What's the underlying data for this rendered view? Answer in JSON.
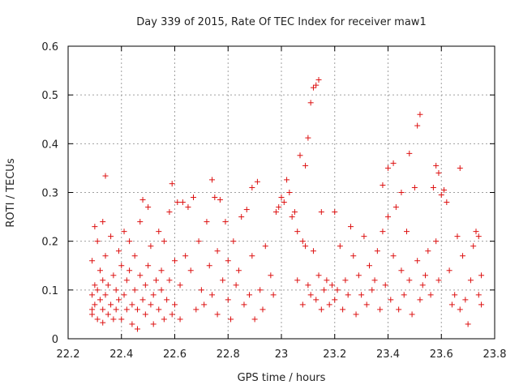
{
  "chart_data": {
    "type": "scatter",
    "title": "Day 339 of 2015, Rate Of TEC Index for receiver maw1",
    "xlabel": "GPS time / hours",
    "ylabel": "ROTI / TECUs",
    "xlim": [
      22.2,
      23.8
    ],
    "ylim": [
      0,
      0.6
    ],
    "x_ticks": [
      "22.2",
      "22.4",
      "22.6",
      "22.8",
      "23",
      "23.2",
      "23.4",
      "23.6",
      "23.8"
    ],
    "y_ticks": [
      "0",
      "0.1",
      "0.2",
      "0.3",
      "0.4",
      "0.5",
      "0.6"
    ],
    "grid": true,
    "marker": "+",
    "series": [
      {
        "color": "#dd1111",
        "points": [
          [
            22.29,
            0.09
          ],
          [
            22.29,
            0.06
          ],
          [
            22.29,
            0.05
          ],
          [
            22.29,
            0.16
          ],
          [
            22.3,
            0.23
          ],
          [
            22.3,
            0.11
          ],
          [
            22.3,
            0.07
          ],
          [
            22.31,
            0.04
          ],
          [
            22.31,
            0.2
          ],
          [
            22.31,
            0.1
          ],
          [
            22.32,
            0.08
          ],
          [
            22.32,
            0.14
          ],
          [
            22.33,
            0.24
          ],
          [
            22.33,
            0.12
          ],
          [
            22.33,
            0.06
          ],
          [
            22.33,
            0.033
          ],
          [
            22.34,
            0.334
          ],
          [
            22.34,
            0.09
          ],
          [
            22.34,
            0.17
          ],
          [
            22.35,
            0.11
          ],
          [
            22.35,
            0.05
          ],
          [
            22.36,
            0.21
          ],
          [
            22.36,
            0.07
          ],
          [
            22.37,
            0.13
          ],
          [
            22.37,
            0.04
          ],
          [
            22.38,
            0.1
          ],
          [
            22.38,
            0.06
          ],
          [
            22.39,
            0.18
          ],
          [
            22.39,
            0.08
          ],
          [
            22.4,
            0.15
          ],
          [
            22.4,
            0.04
          ],
          [
            22.41,
            0.09
          ],
          [
            22.41,
            0.22
          ],
          [
            22.42,
            0.06
          ],
          [
            22.42,
            0.12
          ],
          [
            22.43,
            0.14
          ],
          [
            22.43,
            0.2
          ],
          [
            22.44,
            0.07
          ],
          [
            22.44,
            0.03
          ],
          [
            22.45,
            0.1
          ],
          [
            22.45,
            0.17
          ],
          [
            22.46,
            0.02
          ],
          [
            22.46,
            0.06
          ],
          [
            22.47,
            0.24
          ],
          [
            22.47,
            0.13
          ],
          [
            22.48,
            0.08
          ],
          [
            22.48,
            0.285
          ],
          [
            22.49,
            0.05
          ],
          [
            22.49,
            0.11
          ],
          [
            22.5,
            0.27
          ],
          [
            22.5,
            0.15
          ],
          [
            22.51,
            0.07
          ],
          [
            22.51,
            0.19
          ],
          [
            22.52,
            0.09
          ],
          [
            22.52,
            0.03
          ],
          [
            22.53,
            0.12
          ],
          [
            22.54,
            0.22
          ],
          [
            22.54,
            0.06
          ],
          [
            22.55,
            0.14
          ],
          [
            22.55,
            0.1
          ],
          [
            22.56,
            0.04
          ],
          [
            22.56,
            0.2
          ],
          [
            22.57,
            0.08
          ],
          [
            22.58,
            0.26
          ],
          [
            22.58,
            0.12
          ],
          [
            22.59,
            0.05
          ],
          [
            22.59,
            0.318
          ],
          [
            22.6,
            0.16
          ],
          [
            22.6,
            0.07
          ],
          [
            22.61,
            0.28
          ],
          [
            22.62,
            0.11
          ],
          [
            22.62,
            0.04
          ],
          [
            22.63,
            0.28
          ],
          [
            22.64,
            0.17
          ],
          [
            22.65,
            0.27
          ],
          [
            22.66,
            0.14
          ],
          [
            22.67,
            0.29
          ],
          [
            22.68,
            0.06
          ],
          [
            22.69,
            0.2
          ],
          [
            22.7,
            0.1
          ],
          [
            22.71,
            0.07
          ],
          [
            22.72,
            0.24
          ],
          [
            22.73,
            0.15
          ],
          [
            22.74,
            0.326
          ],
          [
            22.74,
            0.09
          ],
          [
            22.75,
            0.29
          ],
          [
            22.76,
            0.18
          ],
          [
            22.76,
            0.05
          ],
          [
            22.77,
            0.285
          ],
          [
            22.78,
            0.12
          ],
          [
            22.79,
            0.24
          ],
          [
            22.8,
            0.08
          ],
          [
            22.8,
            0.16
          ],
          [
            22.81,
            0.04
          ],
          [
            22.82,
            0.2
          ],
          [
            22.83,
            0.11
          ],
          [
            22.84,
            0.14
          ],
          [
            22.85,
            0.25
          ],
          [
            22.86,
            0.07
          ],
          [
            22.87,
            0.265
          ],
          [
            22.88,
            0.09
          ],
          [
            22.89,
            0.31
          ],
          [
            22.89,
            0.17
          ],
          [
            22.9,
            0.04
          ],
          [
            22.91,
            0.322
          ],
          [
            22.92,
            0.1
          ],
          [
            22.93,
            0.06
          ],
          [
            22.94,
            0.19
          ],
          [
            22.96,
            0.13
          ],
          [
            22.97,
            0.09
          ],
          [
            22.98,
            0.26
          ],
          [
            22.99,
            0.27
          ],
          [
            23.0,
            0.29
          ],
          [
            23.01,
            0.28
          ],
          [
            23.02,
            0.326
          ],
          [
            23.03,
            0.3
          ],
          [
            23.04,
            0.25
          ],
          [
            23.05,
            0.26
          ],
          [
            23.06,
            0.22
          ],
          [
            23.06,
            0.12
          ],
          [
            23.07,
            0.376
          ],
          [
            23.08,
            0.07
          ],
          [
            23.08,
            0.2
          ],
          [
            23.09,
            0.355
          ],
          [
            23.09,
            0.19
          ],
          [
            23.1,
            0.412
          ],
          [
            23.1,
            0.11
          ],
          [
            23.11,
            0.484
          ],
          [
            23.11,
            0.09
          ],
          [
            23.12,
            0.515
          ],
          [
            23.12,
            0.18
          ],
          [
            23.13,
            0.52
          ],
          [
            23.13,
            0.08
          ],
          [
            23.14,
            0.531
          ],
          [
            23.14,
            0.13
          ],
          [
            23.15,
            0.06
          ],
          [
            23.15,
            0.26
          ],
          [
            23.16,
            0.1
          ],
          [
            23.17,
            0.12
          ],
          [
            23.18,
            0.07
          ],
          [
            23.19,
            0.11
          ],
          [
            23.2,
            0.08
          ],
          [
            23.2,
            0.26
          ],
          [
            23.21,
            0.1
          ],
          [
            23.22,
            0.19
          ],
          [
            23.23,
            0.06
          ],
          [
            23.24,
            0.12
          ],
          [
            23.25,
            0.09
          ],
          [
            23.26,
            0.23
          ],
          [
            23.27,
            0.17
          ],
          [
            23.28,
            0.05
          ],
          [
            23.29,
            0.13
          ],
          [
            23.3,
            0.09
          ],
          [
            23.31,
            0.21
          ],
          [
            23.32,
            0.07
          ],
          [
            23.33,
            0.15
          ],
          [
            23.34,
            0.1
          ],
          [
            23.35,
            0.12
          ],
          [
            23.36,
            0.18
          ],
          [
            23.37,
            0.06
          ],
          [
            23.38,
            0.315
          ],
          [
            23.38,
            0.22
          ],
          [
            23.39,
            0.11
          ],
          [
            23.4,
            0.35
          ],
          [
            23.4,
            0.25
          ],
          [
            23.41,
            0.08
          ],
          [
            23.42,
            0.36
          ],
          [
            23.42,
            0.17
          ],
          [
            23.43,
            0.27
          ],
          [
            23.44,
            0.06
          ],
          [
            23.45,
            0.3
          ],
          [
            23.45,
            0.14
          ],
          [
            23.46,
            0.09
          ],
          [
            23.47,
            0.22
          ],
          [
            23.48,
            0.38
          ],
          [
            23.48,
            0.12
          ],
          [
            23.49,
            0.05
          ],
          [
            23.5,
            0.31
          ],
          [
            23.51,
            0.437
          ],
          [
            23.51,
            0.16
          ],
          [
            23.52,
            0.46
          ],
          [
            23.52,
            0.08
          ],
          [
            23.53,
            0.11
          ],
          [
            23.54,
            0.13
          ],
          [
            23.55,
            0.18
          ],
          [
            23.56,
            0.09
          ],
          [
            23.57,
            0.31
          ],
          [
            23.58,
            0.355
          ],
          [
            23.58,
            0.2
          ],
          [
            23.59,
            0.34
          ],
          [
            23.59,
            0.12
          ],
          [
            23.6,
            0.295
          ],
          [
            23.61,
            0.305
          ],
          [
            23.62,
            0.28
          ],
          [
            23.63,
            0.14
          ],
          [
            23.64,
            0.07
          ],
          [
            23.65,
            0.09
          ],
          [
            23.66,
            0.21
          ],
          [
            23.67,
            0.35
          ],
          [
            23.67,
            0.06
          ],
          [
            23.68,
            0.17
          ],
          [
            23.69,
            0.08
          ],
          [
            23.7,
            0.03
          ],
          [
            23.71,
            0.12
          ],
          [
            23.72,
            0.19
          ],
          [
            23.73,
            0.22
          ],
          [
            23.74,
            0.09
          ],
          [
            23.74,
            0.21
          ],
          [
            23.75,
            0.07
          ],
          [
            23.75,
            0.13
          ]
        ]
      }
    ]
  }
}
